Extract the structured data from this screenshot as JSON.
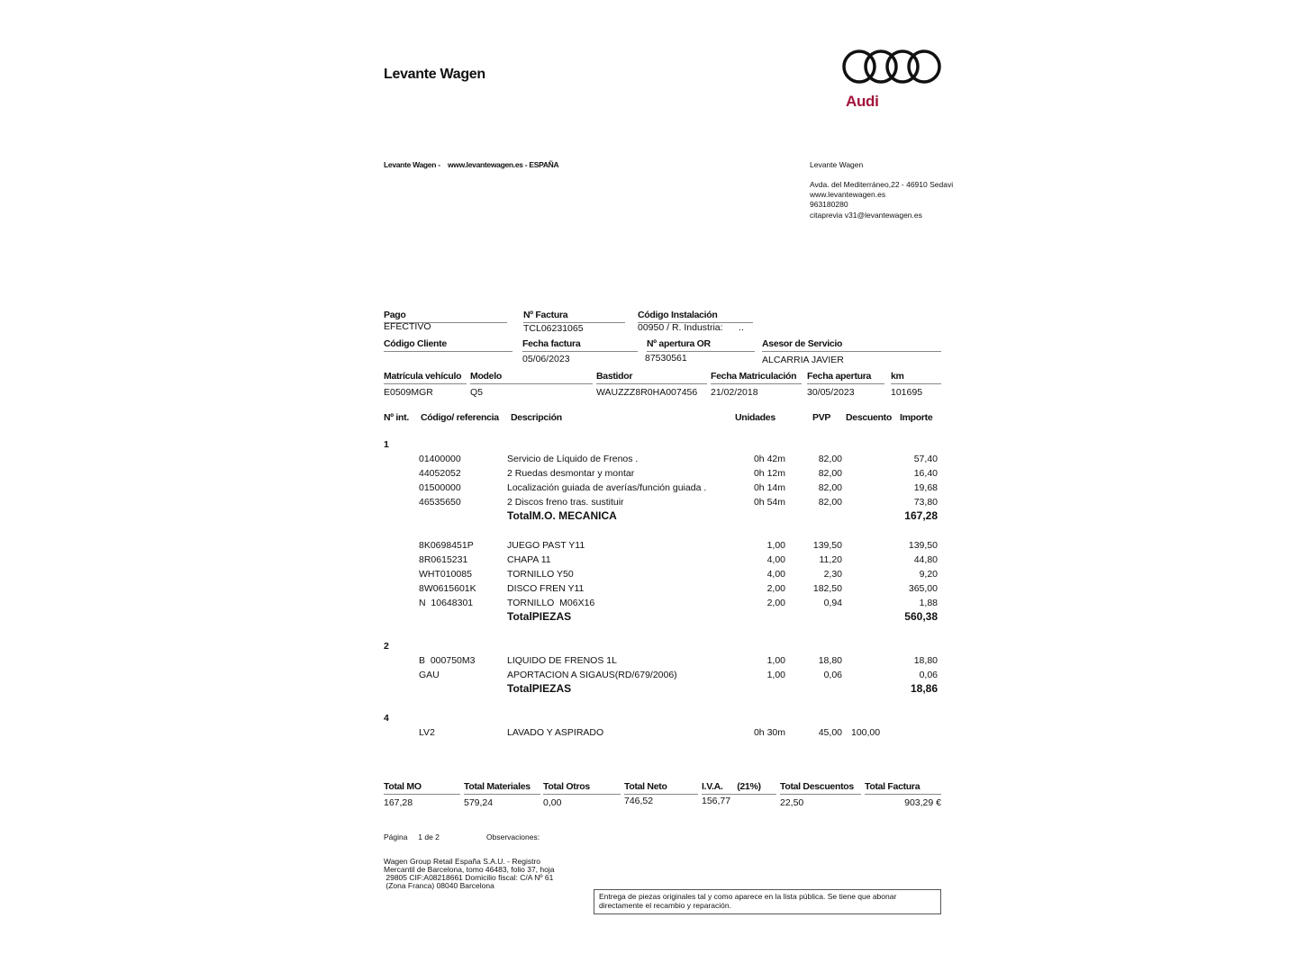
{
  "company": {
    "name": "Levante Wagen",
    "brand": "Audi",
    "brand_color": "#a3133a",
    "header_line": "Levante Wagen -    www.levantewagen.es - ESPAÑA",
    "address": [
      "Levante Wagen",
      "Avda. del Mediterráneo,22 - 46910 Sedavi",
      "www.levantewagen.es",
      "963180280",
      "citaprevia v31@levantewagen.es"
    ]
  },
  "info": {
    "pago_label": "Pago",
    "pago": "EFECTIVO",
    "factura_label": "Nº Factura",
    "factura": "TCL06231065",
    "instalacion_label": "Código Instalación",
    "instalacion": "00950 / R. Industria:      ..",
    "cliente_label": "Código Cliente",
    "fecha_factura_label": "Fecha factura",
    "fecha_factura": "05/06/2023",
    "apertura_or_label": "Nº apertura OR",
    "apertura_or": "87530561",
    "asesor_label": "Asesor de Servicio",
    "asesor": "ALCARRIA JAVIER",
    "matricula_label": "Matrícula vehículo",
    "matricula": "E0509MGR",
    "modelo_label": "Modelo",
    "modelo": "Q5",
    "bastidor_label": "Bastidor",
    "bastidor": "WAUZZZ8R0HA007456",
    "fecha_matric_label": "Fecha Matriculación",
    "fecha_matric": "21/02/2018",
    "fecha_apertura_label": "Fecha apertura",
    "fecha_apertura": "30/05/2023",
    "km_label": "km",
    "km": "101695"
  },
  "columns": {
    "num": "Nº int.",
    "code": "Código/ referencia",
    "desc": "Descripción",
    "units": "Unidades",
    "pvp": "PVP",
    "discount": "Descuento",
    "amount": "Importe"
  },
  "groups": [
    {
      "num": "1",
      "blocks": [
        {
          "items": [
            {
              "code": "01400000",
              "desc": "Servicio de Líquido de Frenos .",
              "units": "0h 42m",
              "pvp": "82,00",
              "discount": "",
              "amount": "57,40"
            },
            {
              "code": "44052052",
              "desc": "2 Ruedas desmontar y montar",
              "units": "0h 12m",
              "pvp": "82,00",
              "discount": "",
              "amount": "16,40"
            },
            {
              "code": "01500000",
              "desc": "Localización guiada de averías/función guiada .",
              "units": "0h 14m",
              "pvp": "82,00",
              "discount": "",
              "amount": "19,68"
            },
            {
              "code": "46535650",
              "desc": "2 Discos freno tras. sustituir",
              "units": "0h 54m",
              "pvp": "82,00",
              "discount": "",
              "amount": "73,80"
            }
          ],
          "total_label": "TotalM.O. MECANICA",
          "total": "167,28"
        },
        {
          "items": [
            {
              "code": "8K0698451P",
              "desc": "JUEGO PAST Y11",
              "units": "1,00",
              "pvp": "139,50",
              "discount": "",
              "amount": "139,50"
            },
            {
              "code": "8R0615231",
              "desc": "CHAPA 11",
              "units": "4,00",
              "pvp": "11,20",
              "discount": "",
              "amount": "44,80"
            },
            {
              "code": "WHT010085",
              "desc": "TORNILLO Y50",
              "units": "4,00",
              "pvp": "2,30",
              "discount": "",
              "amount": "9,20"
            },
            {
              "code": "8W0615601K",
              "desc": "DISCO FREN Y11",
              "units": "2,00",
              "pvp": "182,50",
              "discount": "",
              "amount": "365,00"
            },
            {
              "code": "N  10648301",
              "desc": "TORNILLO  M06X16",
              "units": "2,00",
              "pvp": "0,94",
              "discount": "",
              "amount": "1,88"
            }
          ],
          "total_label": "TotalPIEZAS",
          "total": "560,38"
        }
      ]
    },
    {
      "num": "2",
      "blocks": [
        {
          "items": [
            {
              "code": "B  000750M3",
              "desc": "LIQUIDO DE FRENOS 1L",
              "units": "1,00",
              "pvp": "18,80",
              "discount": "",
              "amount": "18,80"
            },
            {
              "code": "GAU",
              "desc": "APORTACION A SIGAUS(RD/679/2006)",
              "units": "1,00",
              "pvp": "0,06",
              "discount": "",
              "amount": "0,06"
            }
          ],
          "total_label": "TotalPIEZAS",
          "total": "18,86"
        }
      ]
    },
    {
      "num": "4",
      "blocks": [
        {
          "items": [
            {
              "code": "LV2",
              "desc": "LAVADO Y ASPIRADO",
              "units": "0h 30m",
              "pvp": "45,00",
              "discount": "100,00",
              "amount": ""
            }
          ],
          "total_label": "",
          "total": ""
        }
      ]
    }
  ],
  "totals": {
    "mo_label": "Total MO",
    "mo": "167,28",
    "materiales_label": "Total Materiales",
    "materiales": "579,24",
    "otros_label": "Total Otros",
    "otros": "0,00",
    "neto_label": "Total Neto",
    "neto": "746,52",
    "iva_label": "I.V.A.      (21%)",
    "iva": "156,77",
    "descuentos_label": "Total Descuentos",
    "descuentos": "22,50",
    "factura_label": "Total Factura",
    "factura": "903,29 €"
  },
  "footer": {
    "page_label": "Página     1 de 2",
    "observaciones": "Observaciones:",
    "legal": [
      "Wagen Group Retail España S.A.U. -  Registro",
      "Mercantil de Barcelona, tomo 46483, folio 37, hoja",
      " 29805 CIF:A08218661 Domicilio fiscal: C/A Nº 61",
      " (Zona Franca) 08040 Barcelona"
    ],
    "notice": "Entrega de piezas originales tal y como aparece en la lista pública. Se tiene que abonar directamente el recambio y reparación."
  }
}
